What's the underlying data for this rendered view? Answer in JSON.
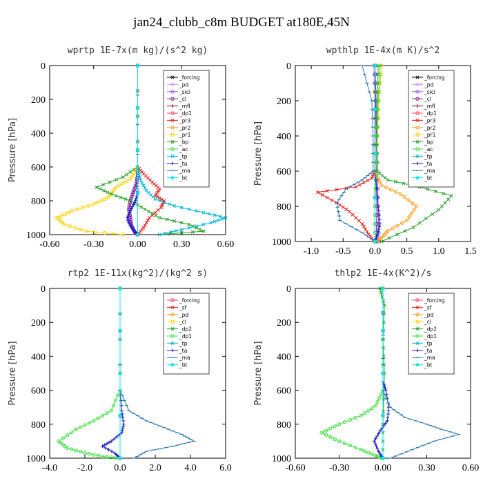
{
  "title": "jan24_clubb_c8m  BUDGET at180E,45N",
  "chart_data": [
    {
      "type": "line",
      "title": "wprtp   1E-7x(m kg)/(s^2 kg)",
      "ylabel": "Pressure [hPa]",
      "xlim": [
        -0.6,
        0.6
      ],
      "ylim": [
        1000,
        0
      ],
      "xticks": [
        "-0.60",
        "-0.30",
        "0.00",
        "0.30",
        "0.60"
      ],
      "yticks": [
        "0",
        "200",
        "400",
        "600",
        "800",
        "1000"
      ],
      "legend_position": "top-right",
      "series": [
        {
          "name": "_forcing",
          "color": "#000000",
          "marker": "x",
          "x": [
            0,
            0
          ],
          "y": [
            0,
            1000
          ]
        },
        {
          "name": "_pd",
          "color": "#c8a0e6",
          "marker": "o",
          "x": [
            0,
            0
          ],
          "y": [
            0,
            1000
          ]
        },
        {
          "name": "_sicl",
          "color": "#9b59d0",
          "marker": "o",
          "x": [
            0,
            0
          ],
          "y": [
            0,
            1000
          ]
        },
        {
          "name": "_cl",
          "color": "#7a1fa2",
          "marker": "o",
          "x": [
            0,
            0,
            0.0,
            -0.01,
            -0.03,
            -0.05,
            -0.06,
            -0.05,
            -0.04,
            -0.02,
            0
          ],
          "y": [
            0,
            600,
            650,
            700,
            750,
            800,
            850,
            900,
            950,
            985,
            1000
          ]
        },
        {
          "name": "_mfl",
          "color": "#8b0a1a",
          "marker": "+",
          "x": [
            0,
            0
          ],
          "y": [
            0,
            1000
          ]
        },
        {
          "name": "_dp1",
          "color": "#ff4060",
          "marker": "o",
          "x": [
            0,
            0
          ],
          "y": [
            0,
            1000
          ]
        },
        {
          "name": "_pr3",
          "color": "#e8201c",
          "marker": "x",
          "x": [
            0,
            0,
            0.04,
            0.1,
            0.15,
            0.12,
            0.18,
            0.16,
            0.08,
            0.04,
            0
          ],
          "y": [
            0,
            600,
            640,
            690,
            730,
            770,
            800,
            840,
            900,
            960,
            1000
          ]
        },
        {
          "name": "_pr2",
          "color": "#ffa020",
          "marker": "o",
          "x": [
            0,
            0
          ],
          "y": [
            0,
            1000
          ]
        },
        {
          "name": "_pr1",
          "color": "#ffd200",
          "marker": "o",
          "x": [
            0,
            0,
            -0.05,
            -0.15,
            -0.2,
            -0.3,
            -0.45,
            -0.55,
            -0.5,
            -0.35,
            -0.1
          ],
          "y": [
            0,
            600,
            670,
            720,
            780,
            820,
            860,
            900,
            940,
            980,
            1000
          ]
        },
        {
          "name": "_bp",
          "color": "#22a022",
          "marker": "x",
          "x": [
            0,
            0,
            -0.1,
            -0.28,
            -0.18,
            -0.05,
            0.05,
            0.15,
            0.35,
            0.45,
            0.15
          ],
          "y": [
            0,
            600,
            660,
            720,
            760,
            800,
            850,
            900,
            940,
            980,
            1000
          ]
        },
        {
          "name": "_ac",
          "color": "#40e040",
          "marker": "o",
          "x": [
            0,
            0
          ],
          "y": [
            0,
            1000
          ]
        },
        {
          "name": "_tp",
          "color": "#00b8d8",
          "marker": "x",
          "x": [
            0,
            0,
            0.02,
            0.06,
            0.12,
            0.25,
            0.45,
            0.6,
            0.5,
            0.3,
            0.15
          ],
          "y": [
            0,
            600,
            680,
            740,
            790,
            830,
            870,
            900,
            930,
            970,
            1000
          ]
        },
        {
          "name": "_ta",
          "color": "#2020c8",
          "marker": "+",
          "x": [
            0,
            0,
            0.0,
            -0.02,
            -0.05,
            -0.07,
            -0.06,
            -0.04,
            -0.02,
            0
          ],
          "y": [
            0,
            700,
            760,
            810,
            860,
            900,
            930,
            960,
            985,
            1000
          ]
        },
        {
          "name": "_ma",
          "color": "#2a7ab0",
          "marker": "dash",
          "x": [
            0,
            0
          ],
          "y": [
            0,
            1000
          ]
        },
        {
          "name": "_bt",
          "color": "#00e8f0",
          "marker": "diamond",
          "x": [
            0,
            0
          ],
          "y": [
            0,
            1000
          ]
        }
      ]
    },
    {
      "type": "line",
      "title": "wpthlp   1E-4x(m K)/s^2",
      "ylabel": "Pressure [hPa]",
      "xlim": [
        -1.25,
        1.5
      ],
      "ylim": [
        1000,
        0
      ],
      "xticks": [
        "-1.0",
        "-0.5",
        "0.0",
        "0.5",
        "1.0",
        "1.5"
      ],
      "yticks": [
        "0",
        "200",
        "400",
        "600",
        "800",
        "1000"
      ],
      "legend_position": "top-right",
      "series": [
        {
          "name": "_forcing",
          "color": "#000000",
          "marker": "x",
          "x": [
            0,
            0
          ],
          "y": [
            0,
            1000
          ]
        },
        {
          "name": "_pd",
          "color": "#c8a0e6",
          "marker": "o",
          "x": [
            -0.02,
            0.0,
            0.02,
            0.02,
            0.03,
            0.03
          ],
          "y": [
            0,
            200,
            400,
            600,
            800,
            1000
          ]
        },
        {
          "name": "_sicl",
          "color": "#9b59d0",
          "marker": "o",
          "x": [
            0.0,
            0.02,
            0.03,
            0.04,
            0.05,
            0.06
          ],
          "y": [
            0,
            200,
            400,
            600,
            800,
            1000
          ]
        },
        {
          "name": "_cl",
          "color": "#7a1fa2",
          "marker": "o",
          "x": [
            0.0,
            0.01,
            0.02,
            0.02,
            0.03,
            0.02
          ],
          "y": [
            0,
            200,
            400,
            600,
            800,
            1000
          ]
        },
        {
          "name": "_mfl",
          "color": "#8b0a1a",
          "marker": "+",
          "x": [
            0,
            0
          ],
          "y": [
            0,
            1000
          ]
        },
        {
          "name": "_dp1",
          "color": "#ff4060",
          "marker": "o",
          "x": [
            0,
            0
          ],
          "y": [
            0,
            1000
          ]
        },
        {
          "name": "_pr3",
          "color": "#e8201c",
          "marker": "x",
          "x": [
            0.0,
            0.0,
            -0.05,
            -0.3,
            -0.9,
            -0.6,
            -0.4,
            -0.2,
            -0.1,
            0.0
          ],
          "y": [
            0,
            600,
            640,
            690,
            720,
            780,
            830,
            900,
            960,
            1000
          ]
        },
        {
          "name": "_pr2",
          "color": "#ffa020",
          "marker": "o",
          "x": [
            0.0,
            0.0,
            0.1,
            0.4,
            0.65,
            0.5,
            0.2,
            0.1,
            0.0
          ],
          "y": [
            0,
            600,
            680,
            730,
            800,
            880,
            940,
            980,
            1000
          ]
        },
        {
          "name": "_pr1",
          "color": "#ffd200",
          "marker": "o",
          "x": [
            0.1,
            0.06,
            0.04,
            0.02,
            0.0,
            0.0
          ],
          "y": [
            0,
            200,
            400,
            600,
            800,
            1000
          ]
        },
        {
          "name": "_bp",
          "color": "#22a022",
          "marker": "x",
          "x": [
            0.05,
            0.04,
            0.03,
            0.03,
            0.2,
            0.7,
            1.2,
            1.0,
            0.6,
            0.1
          ],
          "y": [
            0,
            200,
            400,
            600,
            650,
            690,
            740,
            820,
            920,
            1000
          ]
        },
        {
          "name": "_ac",
          "color": "#40e040",
          "marker": "o",
          "x": [
            0.08,
            0.05,
            0.03,
            0.02,
            0.0,
            0.0
          ],
          "y": [
            0,
            200,
            400,
            600,
            800,
            1000
          ]
        },
        {
          "name": "_tp",
          "color": "#00b8d8",
          "marker": "x",
          "x": [
            0,
            0
          ],
          "y": [
            0,
            1000
          ]
        },
        {
          "name": "_ta",
          "color": "#2020c8",
          "marker": "+",
          "x": [
            0.0,
            0.0,
            0.05,
            0.08,
            0.04,
            0.0
          ],
          "y": [
            0,
            600,
            800,
            900,
            960,
            1000
          ]
        },
        {
          "name": "_ma",
          "color": "#2a7ab0",
          "marker": "dash",
          "x": [
            -0.2,
            -0.05,
            -0.03,
            -0.03,
            -0.2,
            -0.45,
            -0.6,
            -0.55,
            -0.2,
            0.0
          ],
          "y": [
            0,
            200,
            400,
            600,
            650,
            700,
            780,
            880,
            950,
            1000
          ]
        },
        {
          "name": "_bt",
          "color": "#00e8f0",
          "marker": "diamond",
          "x": [
            0,
            0
          ],
          "y": [
            0,
            1000
          ]
        }
      ]
    },
    {
      "type": "line",
      "title": "rtp2   1E-11x(kg^2)/(kg^2 s)",
      "ylabel": "Pressure [hPa]",
      "xlim": [
        -4.0,
        6.0
      ],
      "ylim": [
        1000,
        0
      ],
      "xticks": [
        "-4.0",
        "-2.0",
        "0.0",
        "2.0",
        "4.0",
        "6.0"
      ],
      "yticks": [
        "0",
        "200",
        "400",
        "600",
        "800",
        "1000"
      ],
      "legend_position": "top-right",
      "series": [
        {
          "name": "_forcing",
          "color": "#ff4060",
          "marker": "o",
          "x": [
            0,
            0
          ],
          "y": [
            0,
            1000
          ]
        },
        {
          "name": "_sf",
          "color": "#e8201c",
          "marker": "x",
          "x": [
            0,
            0
          ],
          "y": [
            0,
            1000
          ]
        },
        {
          "name": "_pd",
          "color": "#ffa020",
          "marker": "o",
          "x": [
            0,
            0
          ],
          "y": [
            0,
            1000
          ]
        },
        {
          "name": "_cl",
          "color": "#ffd200",
          "marker": "o",
          "x": [
            0,
            0
          ],
          "y": [
            0,
            1000
          ]
        },
        {
          "name": "_dp2",
          "color": "#22a022",
          "marker": "x",
          "x": [
            0,
            0
          ],
          "y": [
            0,
            1000
          ]
        },
        {
          "name": "_dp1",
          "color": "#40e040",
          "marker": "o",
          "x": [
            0,
            0,
            -0.5,
            -1.5,
            -2.5,
            -3.5,
            -3.0,
            -2.0,
            -1.0,
            0
          ],
          "y": [
            0,
            600,
            720,
            780,
            830,
            900,
            940,
            970,
            990,
            1000
          ]
        },
        {
          "name": "_tp",
          "color": "#00b8d8",
          "marker": "x",
          "x": [
            0,
            0
          ],
          "y": [
            0,
            1000
          ]
        },
        {
          "name": "_ta",
          "color": "#2020c8",
          "marker": "+",
          "x": [
            0,
            0,
            0.1,
            0.2,
            0.1,
            -0.5,
            -1.0,
            -0.3,
            0
          ],
          "y": [
            0,
            600,
            720,
            800,
            850,
            900,
            930,
            970,
            1000
          ]
        },
        {
          "name": "_ma",
          "color": "#2a7ab0",
          "marker": "dash",
          "x": [
            0,
            0,
            0.5,
            1.5,
            2.5,
            3.5,
            4.2,
            3.0,
            1.5,
            0.8
          ],
          "y": [
            0,
            600,
            720,
            780,
            820,
            860,
            900,
            930,
            960,
            1000
          ]
        },
        {
          "name": "_bt",
          "color": "#00e8f0",
          "marker": "diamond",
          "x": [
            0,
            0
          ],
          "y": [
            0,
            1000
          ]
        }
      ]
    },
    {
      "type": "line",
      "title": "thlp2   1E-4x(K^2)/s",
      "ylabel": "Pressure [hPa]",
      "xlim": [
        -0.6,
        0.6
      ],
      "ylim": [
        1000,
        0
      ],
      "xticks": [
        "-0.60",
        "-0.30",
        "0.00",
        "0.30",
        "0.60"
      ],
      "yticks": [
        "0",
        "200",
        "400",
        "600",
        "800",
        "1000"
      ],
      "legend_position": "top-right",
      "series": [
        {
          "name": "_forcing",
          "color": "#ff4060",
          "marker": "o",
          "x": [
            0,
            0
          ],
          "y": [
            0,
            1000
          ]
        },
        {
          "name": "_sf",
          "color": "#e8201c",
          "marker": "x",
          "x": [
            0,
            0
          ],
          "y": [
            0,
            1000
          ]
        },
        {
          "name": "_pd",
          "color": "#ffa020",
          "marker": "o",
          "x": [
            0,
            0
          ],
          "y": [
            0,
            1000
          ]
        },
        {
          "name": "_cl",
          "color": "#ffd200",
          "marker": "o",
          "x": [
            0,
            0
          ],
          "y": [
            0,
            1000
          ]
        },
        {
          "name": "_dp2",
          "color": "#22a022",
          "marker": "x",
          "x": [
            -0.02,
            0.01,
            0.0,
            0.01,
            0.0,
            0
          ],
          "y": [
            0,
            100,
            300,
            500,
            800,
            1000
          ]
        },
        {
          "name": "_dp1",
          "color": "#40e040",
          "marker": "o",
          "x": [
            0,
            0,
            -0.05,
            -0.15,
            -0.3,
            -0.42,
            -0.3,
            -0.15,
            -0.05,
            0
          ],
          "y": [
            0,
            600,
            690,
            750,
            800,
            850,
            900,
            950,
            985,
            1000
          ]
        },
        {
          "name": "_tp",
          "color": "#00b8d8",
          "marker": "x",
          "x": [
            0,
            0
          ],
          "y": [
            0,
            1000
          ]
        },
        {
          "name": "_ta",
          "color": "#2020c8",
          "marker": "+",
          "x": [
            0,
            0,
            0.02,
            0.04,
            0.03,
            -0.02,
            -0.06,
            -0.03,
            0
          ],
          "y": [
            0,
            550,
            600,
            700,
            780,
            840,
            900,
            960,
            1000
          ]
        },
        {
          "name": "_ma",
          "color": "#2a7ab0",
          "marker": "dash",
          "x": [
            0,
            0,
            0.05,
            0.15,
            0.3,
            0.4,
            0.52,
            0.35,
            0.2,
            0.05
          ],
          "y": [
            0,
            600,
            700,
            760,
            800,
            830,
            860,
            900,
            950,
            1000
          ]
        },
        {
          "name": "_bt",
          "color": "#00e8f0",
          "marker": "diamond",
          "x": [
            0,
            0
          ],
          "y": [
            0,
            1000
          ]
        }
      ]
    }
  ]
}
